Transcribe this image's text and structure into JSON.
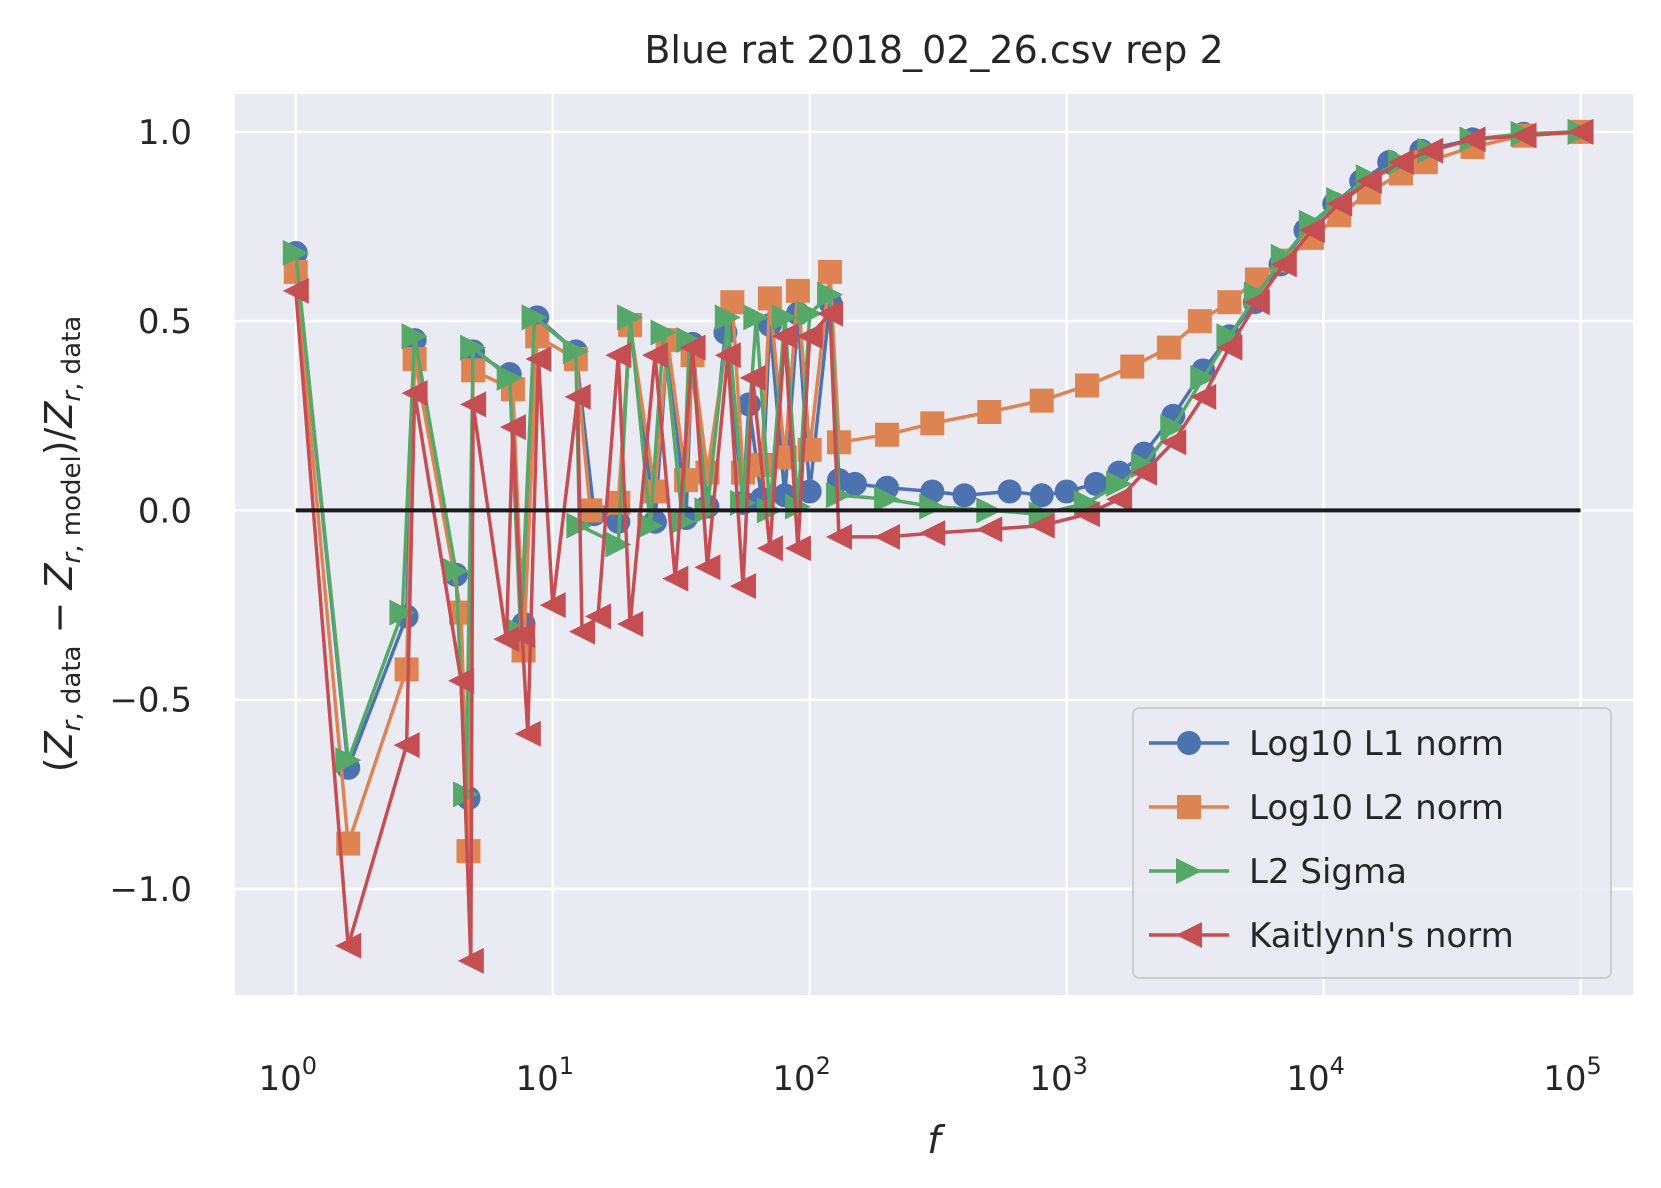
{
  "chart_data": {
    "type": "line",
    "title": "Blue rat 2018_02_26.csv rep 2",
    "xlabel": "f",
    "ylabel": "(Z_{r, data} − Z_{r, model})/Z_{r, data}",
    "xscale": "log",
    "xlim": [
      0.58,
      160000
    ],
    "ylim": [
      -1.28,
      1.1
    ],
    "x_ticks": [
      {
        "value": 1,
        "base": "10",
        "exp": "0"
      },
      {
        "value": 10,
        "base": "10",
        "exp": "1"
      },
      {
        "value": 100,
        "base": "10",
        "exp": "2"
      },
      {
        "value": 1000,
        "base": "10",
        "exp": "3"
      },
      {
        "value": 10000,
        "base": "10",
        "exp": "4"
      },
      {
        "value": 100000,
        "base": "10",
        "exp": "5"
      }
    ],
    "y_ticks": [
      {
        "value": 1.0,
        "label": "1.0"
      },
      {
        "value": 0.5,
        "label": "0.5"
      },
      {
        "value": 0.0,
        "label": "0.0"
      },
      {
        "value": -0.5,
        "label": "−0.5"
      },
      {
        "value": -1.0,
        "label": "−1.0"
      }
    ],
    "grid": true,
    "legend_position": "lower-right",
    "background": "#eaeaf2",
    "reference_line": {
      "y": 0,
      "x_range": [
        1,
        100000
      ],
      "color": "#1a1a1a"
    },
    "series": [
      {
        "name": "Log10 L1 norm",
        "color": "#4c72b0",
        "marker": "circle",
        "points": [
          [
            1,
            0.68
          ],
          [
            1.6,
            -0.68
          ],
          [
            2.7,
            -0.28
          ],
          [
            2.9,
            0.45
          ],
          [
            4.2,
            -0.17
          ],
          [
            4.7,
            -0.76
          ],
          [
            4.9,
            0.42
          ],
          [
            6.8,
            0.36
          ],
          [
            7.7,
            -0.3
          ],
          [
            8.7,
            0.51
          ],
          [
            12.3,
            0.42
          ],
          [
            14.5,
            -0.01
          ],
          [
            18,
            -0.03
          ],
          [
            20,
            0.49
          ],
          [
            25,
            -0.03
          ],
          [
            28,
            0.45
          ],
          [
            33,
            -0.02
          ],
          [
            35,
            0.44
          ],
          [
            40,
            0.01
          ],
          [
            47,
            0.47
          ],
          [
            55,
            0.02
          ],
          [
            58,
            0.28
          ],
          [
            65,
            0.03
          ],
          [
            70,
            0.49
          ],
          [
            80,
            0.04
          ],
          [
            90,
            0.52
          ],
          [
            100,
            0.05
          ],
          [
            120,
            0.55
          ],
          [
            130,
            0.08
          ],
          [
            150,
            0.07
          ],
          [
            200,
            0.06
          ],
          [
            300,
            0.05
          ],
          [
            400,
            0.04
          ],
          [
            600,
            0.05
          ],
          [
            800,
            0.04
          ],
          [
            1000,
            0.05
          ],
          [
            1300,
            0.07
          ],
          [
            1600,
            0.1
          ],
          [
            2000,
            0.15
          ],
          [
            2600,
            0.25
          ],
          [
            3400,
            0.37
          ],
          [
            4300,
            0.46
          ],
          [
            5400,
            0.55
          ],
          [
            6800,
            0.65
          ],
          [
            8500,
            0.74
          ],
          [
            11000,
            0.81
          ],
          [
            14000,
            0.87
          ],
          [
            18000,
            0.92
          ],
          [
            24000,
            0.95
          ],
          [
            38000,
            0.98
          ],
          [
            60000,
            0.995
          ],
          [
            100000,
            1.0
          ]
        ]
      },
      {
        "name": "Log10 L2 norm",
        "color": "#dd8452",
        "marker": "square",
        "points": [
          [
            1,
            0.63
          ],
          [
            1.6,
            -0.88
          ],
          [
            2.7,
            -0.42
          ],
          [
            2.9,
            0.4
          ],
          [
            4.4,
            -0.27
          ],
          [
            4.7,
            -0.9
          ],
          [
            4.9,
            0.37
          ],
          [
            7,
            0.32
          ],
          [
            7.7,
            -0.37
          ],
          [
            8.7,
            0.46
          ],
          [
            12.3,
            0.4
          ],
          [
            14,
            0.0
          ],
          [
            18,
            0.02
          ],
          [
            20,
            0.49
          ],
          [
            25,
            0.05
          ],
          [
            28,
            0.45
          ],
          [
            33,
            0.08
          ],
          [
            35,
            0.41
          ],
          [
            40,
            0.1
          ],
          [
            50,
            0.55
          ],
          [
            55,
            0.1
          ],
          [
            65,
            0.12
          ],
          [
            70,
            0.56
          ],
          [
            80,
            0.14
          ],
          [
            90,
            0.58
          ],
          [
            100,
            0.16
          ],
          [
            120,
            0.63
          ],
          [
            130,
            0.18
          ],
          [
            200,
            0.2
          ],
          [
            300,
            0.23
          ],
          [
            500,
            0.26
          ],
          [
            800,
            0.29
          ],
          [
            1200,
            0.33
          ],
          [
            1800,
            0.38
          ],
          [
            2500,
            0.43
          ],
          [
            3300,
            0.5
          ],
          [
            4300,
            0.55
          ],
          [
            5500,
            0.61
          ],
          [
            7000,
            0.66
          ],
          [
            9000,
            0.72
          ],
          [
            11500,
            0.78
          ],
          [
            15000,
            0.84
          ],
          [
            20000,
            0.89
          ],
          [
            25000,
            0.92
          ],
          [
            38000,
            0.96
          ],
          [
            60000,
            0.99
          ],
          [
            100000,
            1.0
          ]
        ]
      },
      {
        "name": "L2 Sigma",
        "color": "#55a868",
        "marker": "triangle-right",
        "points": [
          [
            1,
            0.68
          ],
          [
            1.6,
            -0.66
          ],
          [
            2.6,
            -0.27
          ],
          [
            2.9,
            0.46
          ],
          [
            4.2,
            -0.16
          ],
          [
            4.6,
            -0.75
          ],
          [
            4.9,
            0.43
          ],
          [
            6.8,
            0.35
          ],
          [
            7.5,
            -0.32
          ],
          [
            8.5,
            0.51
          ],
          [
            12.3,
            0.42
          ],
          [
            12.7,
            -0.04
          ],
          [
            18,
            -0.09
          ],
          [
            20,
            0.51
          ],
          [
            24,
            -0.04
          ],
          [
            27,
            0.47
          ],
          [
            32,
            -0.03
          ],
          [
            34,
            0.45
          ],
          [
            40,
            0.0
          ],
          [
            48,
            0.51
          ],
          [
            55,
            0.02
          ],
          [
            62,
            0.51
          ],
          [
            70,
            0.0
          ],
          [
            80,
            0.51
          ],
          [
            90,
            0.01
          ],
          [
            100,
            0.52
          ],
          [
            120,
            0.57
          ],
          [
            130,
            0.04
          ],
          [
            200,
            0.03
          ],
          [
            300,
            0.01
          ],
          [
            500,
            0.0
          ],
          [
            800,
            -0.01
          ],
          [
            1200,
            0.02
          ],
          [
            1600,
            0.07
          ],
          [
            2000,
            0.12
          ],
          [
            2600,
            0.22
          ],
          [
            3400,
            0.35
          ],
          [
            4300,
            0.46
          ],
          [
            5500,
            0.57
          ],
          [
            7000,
            0.67
          ],
          [
            9000,
            0.76
          ],
          [
            11500,
            0.82
          ],
          [
            15000,
            0.88
          ],
          [
            20000,
            0.92
          ],
          [
            26000,
            0.95
          ],
          [
            38000,
            0.98
          ],
          [
            60000,
            0.995
          ],
          [
            100000,
            1.0
          ]
        ]
      },
      {
        "name": "Kaitlynn's norm",
        "color": "#c44e52",
        "marker": "triangle-left",
        "points": [
          [
            1,
            0.58
          ],
          [
            1.6,
            -1.15
          ],
          [
            2.7,
            -0.62
          ],
          [
            2.9,
            0.31
          ],
          [
            4.4,
            -0.45
          ],
          [
            4.8,
            -1.19
          ],
          [
            4.9,
            0.28
          ],
          [
            6.6,
            -0.34
          ],
          [
            7,
            0.22
          ],
          [
            7.6,
            -0.33
          ],
          [
            8,
            -0.59
          ],
          [
            8.8,
            0.4
          ],
          [
            10,
            -0.25
          ],
          [
            12.5,
            0.3
          ],
          [
            13,
            -0.32
          ],
          [
            15,
            -0.28
          ],
          [
            18,
            0.41
          ],
          [
            20,
            -0.3
          ],
          [
            25,
            0.41
          ],
          [
            30,
            -0.18
          ],
          [
            35,
            0.43
          ],
          [
            40,
            -0.15
          ],
          [
            48,
            0.41
          ],
          [
            55,
            -0.2
          ],
          [
            60,
            0.35
          ],
          [
            70,
            -0.1
          ],
          [
            80,
            0.46
          ],
          [
            90,
            -0.1
          ],
          [
            100,
            0.46
          ],
          [
            120,
            0.52
          ],
          [
            130,
            -0.07
          ],
          [
            200,
            -0.07
          ],
          [
            300,
            -0.06
          ],
          [
            500,
            -0.05
          ],
          [
            800,
            -0.04
          ],
          [
            1200,
            -0.01
          ],
          [
            1600,
            0.03
          ],
          [
            2000,
            0.1
          ],
          [
            2600,
            0.18
          ],
          [
            3400,
            0.3
          ],
          [
            4300,
            0.43
          ],
          [
            5500,
            0.55
          ],
          [
            7000,
            0.65
          ],
          [
            9000,
            0.74
          ],
          [
            11500,
            0.81
          ],
          [
            15000,
            0.87
          ],
          [
            20000,
            0.92
          ],
          [
            26000,
            0.95
          ],
          [
            38000,
            0.98
          ],
          [
            60000,
            0.99
          ],
          [
            100000,
            1.0
          ]
        ]
      }
    ]
  }
}
